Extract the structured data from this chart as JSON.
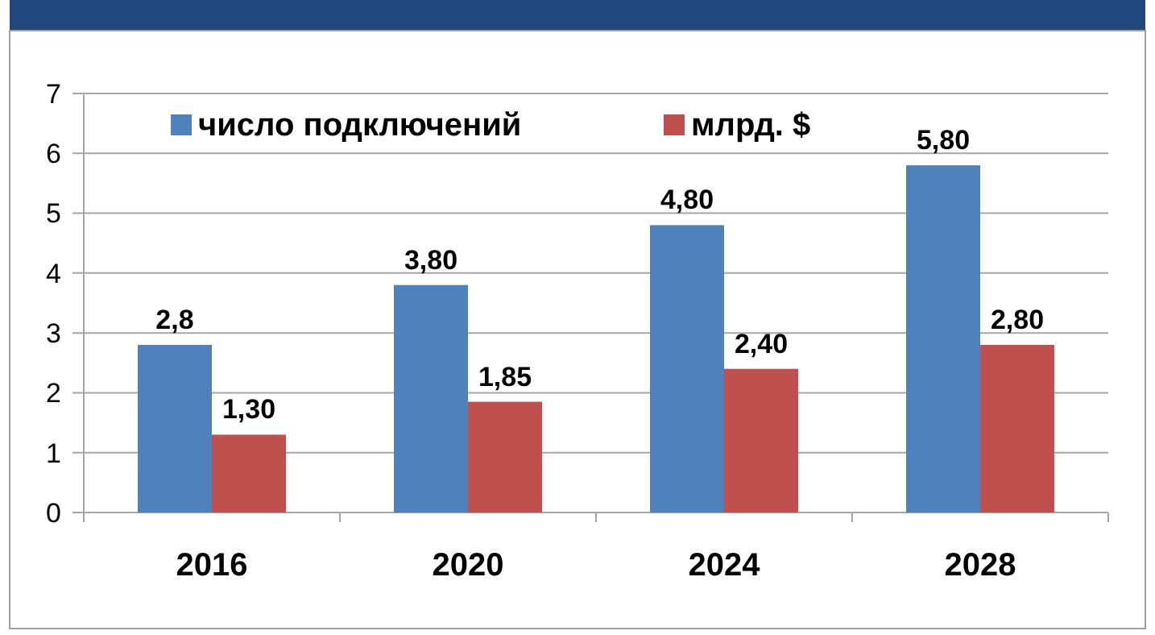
{
  "chart_data": {
    "type": "bar",
    "categories": [
      "2016",
      "2020",
      "2024",
      "2028"
    ],
    "series": [
      {
        "name": "число подключений",
        "color": "#4f81bd",
        "values": [
          2.8,
          3.8,
          4.8,
          5.8
        ],
        "value_labels": [
          "2,8",
          "3,80",
          "4,80",
          "5,80"
        ]
      },
      {
        "name": "млрд. $",
        "color": "#c0504d",
        "values": [
          1.3,
          1.85,
          2.4,
          2.8
        ],
        "value_labels": [
          "1,30",
          "1,85",
          "2,40",
          "2,80"
        ]
      }
    ],
    "ylim": [
      0,
      7
    ],
    "yticks": [
      0,
      1,
      2,
      3,
      4,
      5,
      6,
      7
    ],
    "grid": "y",
    "legend": "top"
  }
}
